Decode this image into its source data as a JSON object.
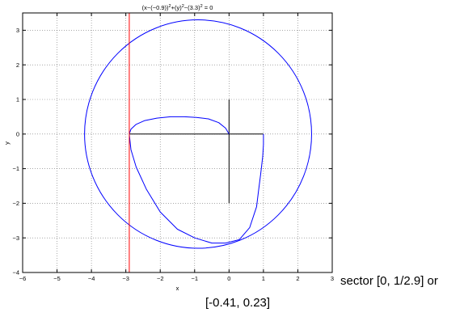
{
  "chart_data": {
    "type": "line",
    "title": {
      "base": "(x−(−0.9))",
      "sup1": "2",
      "mid": "+(y)",
      "sup2": "2",
      "tail": "−(3.3)",
      "sup3": "2",
      "end": " = 0"
    },
    "xlabel": "x",
    "ylabel": "y",
    "xlim": [
      -6,
      3
    ],
    "ylim": [
      -4,
      3.5
    ],
    "xticks": [
      "−6",
      "−5",
      "−4",
      "−3",
      "−2",
      "−1",
      "0",
      "1",
      "2",
      "3"
    ],
    "yticks": [
      "−4",
      "−3",
      "−2",
      "−1",
      "0",
      "1",
      "2",
      "3"
    ],
    "xtick_values": [
      -6,
      -5,
      -4,
      -3,
      -2,
      -1,
      0,
      1,
      2,
      3
    ],
    "ytick_values": [
      -4,
      -3,
      -2,
      -1,
      0,
      1,
      2,
      3
    ],
    "grid": true,
    "colors": {
      "curve": "#0000ff",
      "vline": "#ff0000",
      "axes_cross": "#000000"
    },
    "circle": {
      "cx": -0.9,
      "cy": 0,
      "r": 3.3
    },
    "vertical_line_x": -2.9,
    "horizontal_segment": {
      "x": [
        -2.9,
        1
      ],
      "y": 0
    },
    "vertical_segment": {
      "x": 0,
      "y": [
        -2,
        1
      ]
    },
    "inner_curve": {
      "x": [
        -2.9,
        -2.85,
        -2.7,
        -2.45,
        -2.1,
        -1.7,
        -1.3,
        -0.95,
        -0.6,
        -0.3,
        -0.1,
        0
      ],
      "y": [
        0,
        0.14,
        0.28,
        0.39,
        0.46,
        0.5,
        0.5,
        0.48,
        0.44,
        0.33,
        0.17,
        0
      ]
    },
    "lower_curve": {
      "x": [
        -2.9,
        -2.85,
        -2.7,
        -2.4,
        -2.0,
        -1.5,
        -1.0,
        -0.5,
        -0.1,
        0.3,
        0.6,
        0.8,
        0.85,
        0.92,
        0.98,
        1.0,
        1.0
      ],
      "y": [
        0,
        -0.45,
        -0.95,
        -1.6,
        -2.25,
        -2.75,
        -3.0,
        -3.15,
        -3.15,
        -3.05,
        -2.7,
        -2.1,
        -1.7,
        -1.15,
        -0.65,
        -0.3,
        0
      ]
    }
  },
  "caption": {
    "line1": "sector [0, 1/2.9] or",
    "line2": "[-0.41, 0.23]"
  }
}
